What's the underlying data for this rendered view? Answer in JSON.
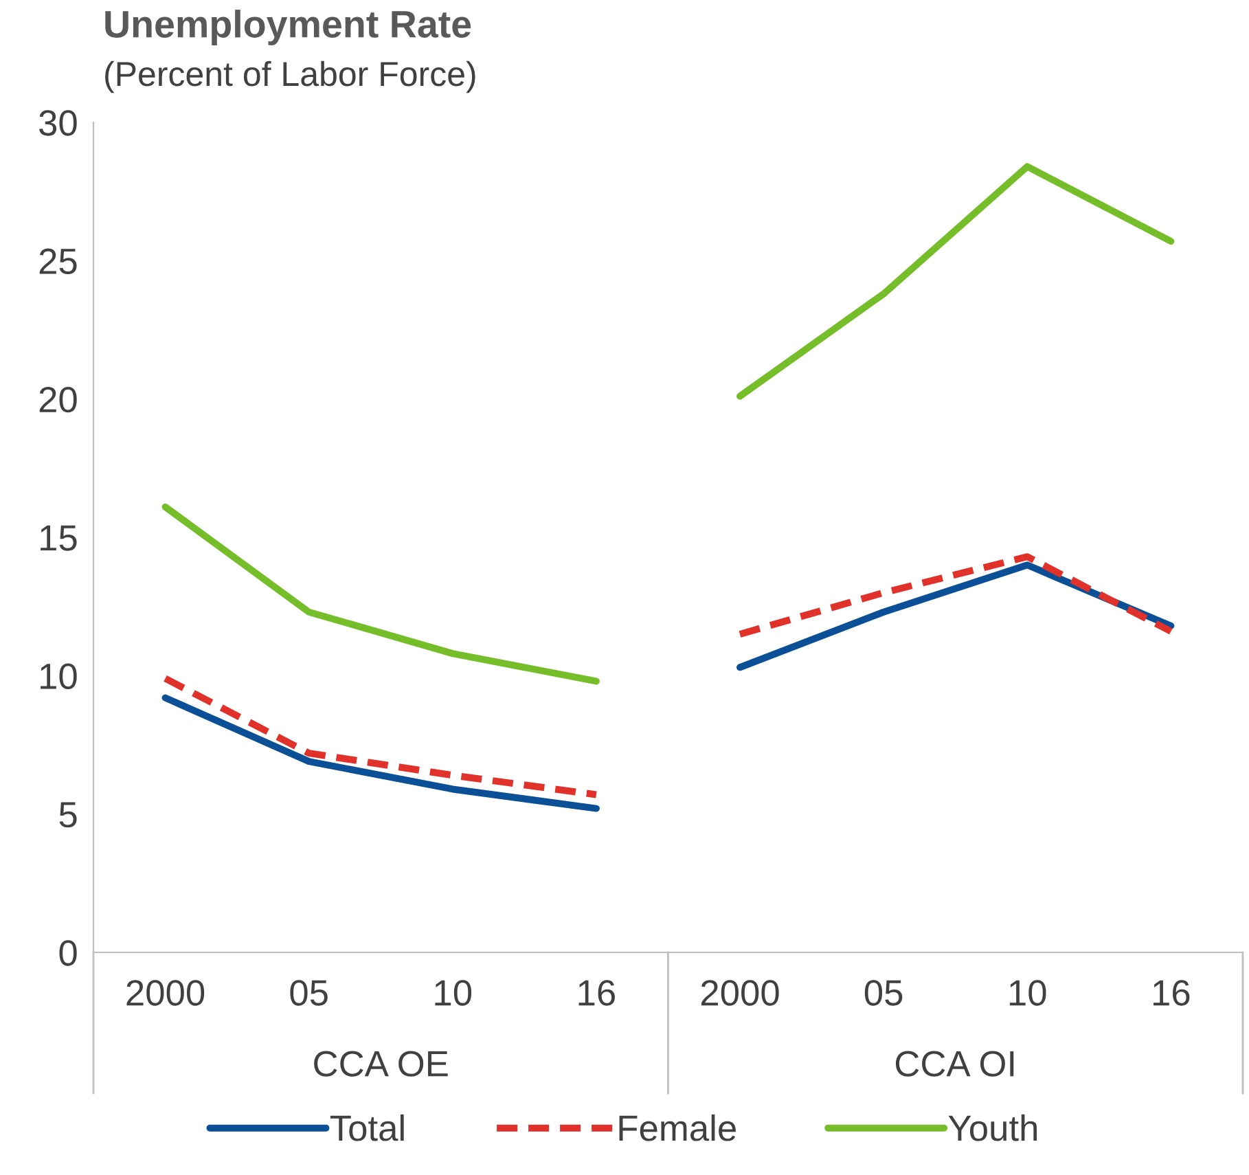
{
  "chart_data": {
    "type": "line",
    "title": "Unemployment Rate",
    "subtitle": "(Percent of Labor Force)",
    "categories": [
      "2000",
      "05",
      "10",
      "16",
      "2000",
      "05",
      "10",
      "16"
    ],
    "annotations": [
      "CCA OE",
      "CCA OI"
    ],
    "series": [
      {
        "name": "Total",
        "color": "#0b4f96",
        "line_style": "solid",
        "values": [
          9.2,
          6.9,
          5.9,
          5.2,
          null,
          null,
          null,
          null
        ]
      },
      {
        "name": "Female",
        "color": "#e0312b",
        "line_style": "dashed",
        "values": [
          9.9,
          7.2,
          6.4,
          5.7,
          null,
          null,
          null,
          null
        ]
      },
      {
        "name": "Youth",
        "color": "#76bd2a",
        "line_style": "solid",
        "values": [
          16.1,
          12.3,
          10.8,
          9.8,
          null,
          null,
          null,
          null
        ]
      },
      {
        "color": "#0b4f96",
        "line_style": "solid",
        "values": [
          null,
          null,
          null,
          null,
          10.3,
          12.3,
          14.0,
          11.8
        ]
      },
      {
        "color": "#e0312b",
        "line_style": "dashed",
        "values": [
          null,
          null,
          null,
          null,
          11.5,
          13.0,
          14.3,
          11.6
        ]
      },
      {
        "color": "#76bd2a",
        "line_style": "solid",
        "values": [
          null,
          null,
          null,
          null,
          20.1,
          23.8,
          28.4,
          25.7
        ]
      }
    ],
    "ylim": [
      0,
      30
    ],
    "yticks": [
      0,
      5,
      10,
      15,
      20,
      25,
      30
    ],
    "grid": false,
    "legend": "bottom",
    "marker": "none"
  }
}
